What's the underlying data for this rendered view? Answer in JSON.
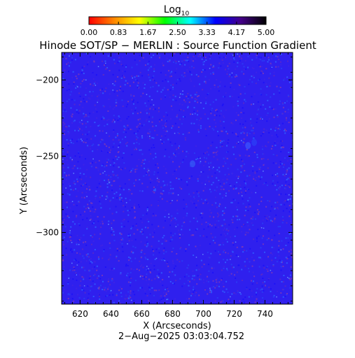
{
  "chart_data": {
    "type": "heatmap",
    "title": "Hinode SOT/SP − MERLIN : Source Function Gradient",
    "xlabel": "X (Arcseconds)",
    "ylabel": "Y (Arcseconds)",
    "timestamp": "2−Aug−2025 03:03:04.752",
    "xlim": [
      608,
      758
    ],
    "ylim": [
      -347,
      -182
    ],
    "x_ticks": [
      620,
      640,
      660,
      680,
      700,
      720,
      740
    ],
    "x_tick_labels": [
      "620",
      "640",
      "660",
      "680",
      "700",
      "720",
      "740"
    ],
    "y_ticks": [
      -200,
      -250,
      -300
    ],
    "y_tick_labels": [
      "−200",
      "−250",
      "−300"
    ],
    "colorbar": {
      "label_base": "Log",
      "label_sub": "10",
      "range": [
        0,
        5
      ],
      "tick_labels": [
        "0.00",
        "0.83",
        "1.67",
        "2.50",
        "3.33",
        "4.17",
        "5.00"
      ],
      "colormap": [
        "#ff0000",
        "#ff8800",
        "#ffff00",
        "#00ff00",
        "#00ffff",
        "#0000ff",
        "#440088",
        "#000000"
      ]
    },
    "field": {
      "dominant_value": 4.2,
      "dominant_color": "#2f20ee",
      "speckle_colors": [
        "#1a10f8",
        "#3f24e4",
        "#5a2ac8",
        "#2a40f4",
        "#7a3ab8",
        "#3060ff"
      ],
      "features": [
        {
          "x": 729,
          "y": -243,
          "value": 3.9,
          "color": "#3a4cf8"
        },
        {
          "x": 733,
          "y": -241,
          "value": 3.8,
          "color": "#2c3af4"
        },
        {
          "x": 693,
          "y": -255,
          "value": 3.9,
          "color": "#3450f4"
        }
      ]
    }
  }
}
